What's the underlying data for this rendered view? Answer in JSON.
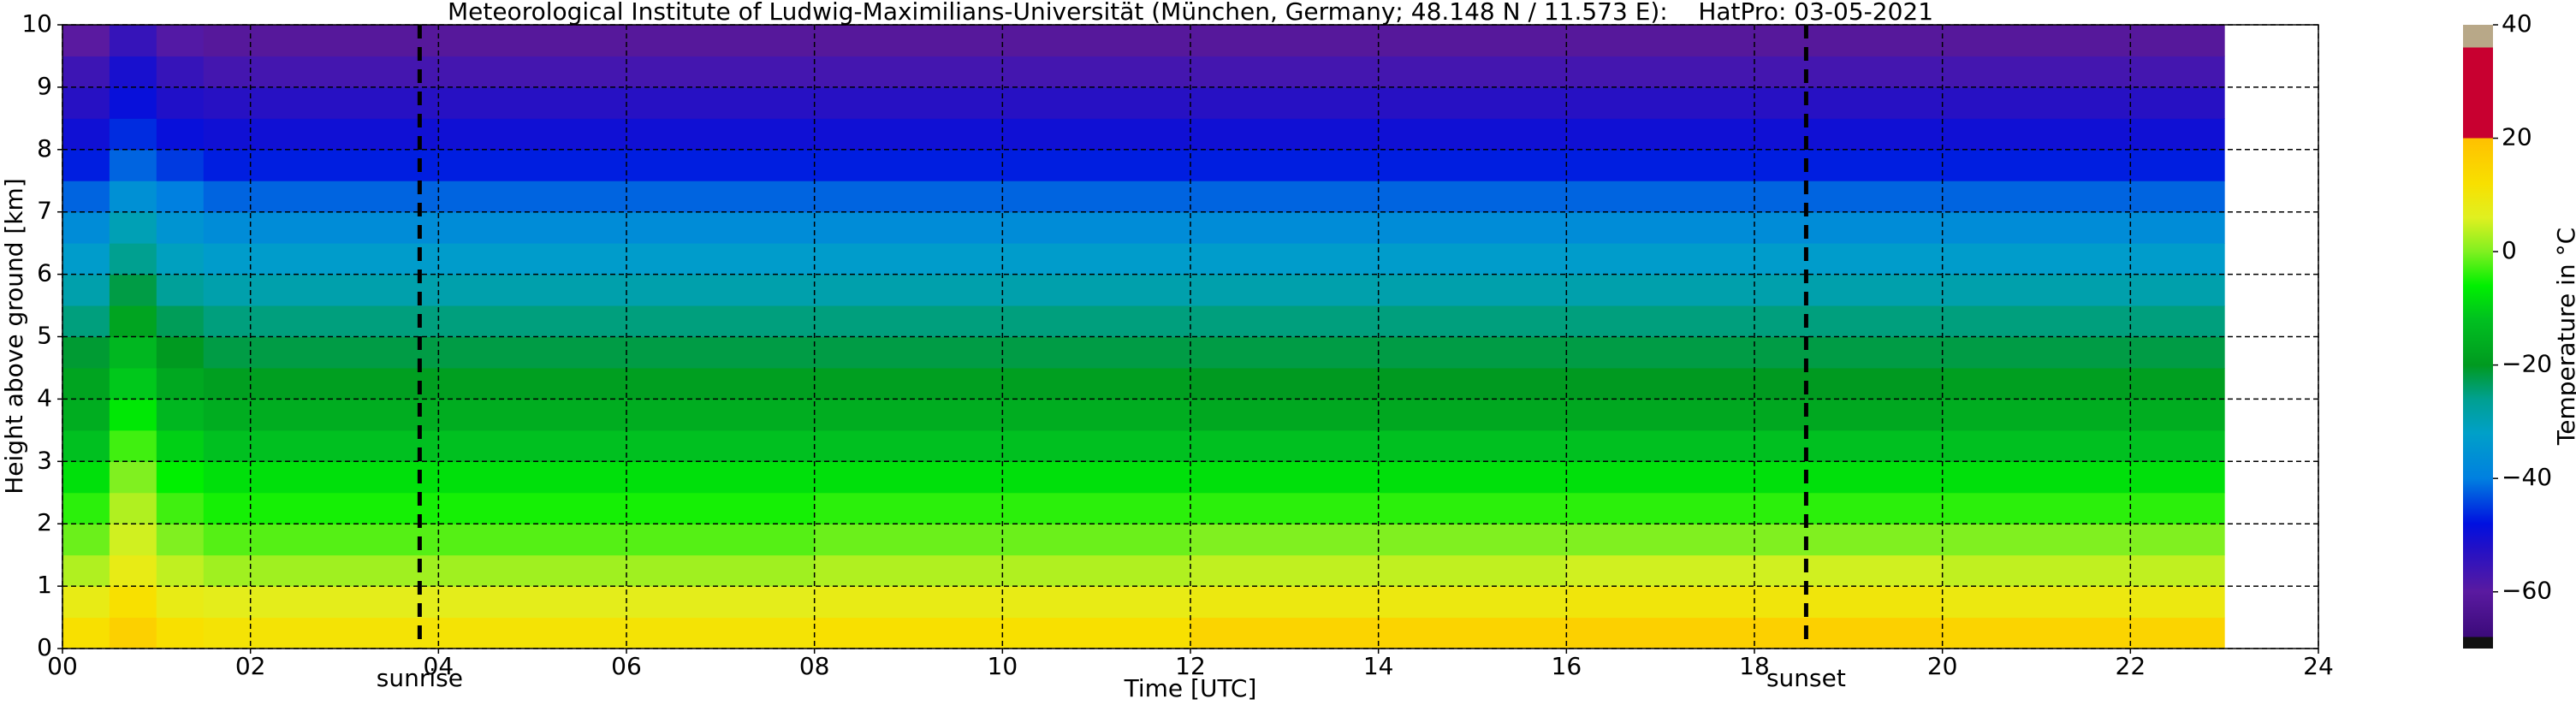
{
  "chart_data": {
    "type": "heatmap",
    "title": "Meteorological Institute of Ludwig-Maximilians-Universität (München, Germany; 48.148 N / 11.573 E):    HatPro: 03-05-2021",
    "xlabel": "Time [UTC]",
    "ylabel": "Height above ground [km]",
    "xlim": [
      0,
      24
    ],
    "xticks": [
      {
        "value": 0,
        "label": "00"
      },
      {
        "value": 2,
        "label": "02"
      },
      {
        "value": 4,
        "label": "04"
      },
      {
        "value": 6,
        "label": "06"
      },
      {
        "value": 8,
        "label": "08"
      },
      10,
      12,
      14,
      16,
      18,
      20,
      22,
      24
    ],
    "ylim": [
      0,
      10
    ],
    "yticks": [
      0,
      1,
      2,
      3,
      4,
      5,
      6,
      7,
      8,
      9,
      10
    ],
    "grid": true,
    "x_edges": [
      0,
      0.5,
      1,
      1.5,
      4,
      8,
      12,
      16,
      20,
      23
    ],
    "y_edges": [
      0,
      0.5,
      1,
      1.5,
      2,
      2.5,
      3,
      3.5,
      4,
      4.5,
      5,
      5.5,
      6,
      6.5,
      7,
      7.5,
      8,
      8.5,
      9,
      9.5,
      10
    ],
    "values": [
      [
        12,
        16,
        12,
        11,
        11,
        12,
        15,
        16,
        15
      ],
      [
        8,
        12,
        8,
        7,
        7,
        8,
        9,
        10,
        9
      ],
      [
        3,
        8,
        4,
        2,
        2,
        3,
        4,
        5,
        4
      ],
      [
        -1,
        5,
        0,
        -2,
        -2,
        -1,
        0,
        0,
        0
      ],
      [
        -4,
        3,
        -3,
        -5,
        -5,
        -4,
        -4,
        -4,
        -4
      ],
      [
        -8,
        0,
        -6,
        -8,
        -8,
        -8,
        -8,
        -8,
        -8
      ],
      [
        -12,
        -3,
        -10,
        -12,
        -12,
        -12,
        -12,
        -12,
        -12
      ],
      [
        -16,
        -7,
        -14,
        -16,
        -16,
        -16,
        -17,
        -17,
        -16
      ],
      [
        -18,
        -11,
        -17,
        -19,
        -19,
        -19,
        -20,
        -20,
        -19
      ],
      [
        -21,
        -14,
        -20,
        -22,
        -22,
        -22,
        -22,
        -22,
        -22
      ],
      [
        -25,
        -18,
        -23,
        -25,
        -25,
        -25,
        -25,
        -25,
        -25
      ],
      [
        -29,
        -22,
        -27,
        -29,
        -29,
        -29,
        -29,
        -29,
        -29
      ],
      [
        -33,
        -26,
        -31,
        -33,
        -33,
        -33,
        -33,
        -33,
        -33
      ],
      [
        -37,
        -30,
        -35,
        -37,
        -37,
        -37,
        -37,
        -37,
        -37
      ],
      [
        -42,
        -36,
        -40,
        -42,
        -42,
        -42,
        -42,
        -42,
        -42
      ],
      [
        -47,
        -42,
        -45,
        -47,
        -47,
        -47,
        -47,
        -47,
        -47
      ],
      [
        -50,
        -46,
        -49,
        -50,
        -50,
        -50,
        -50,
        -50,
        -50
      ],
      [
        -53,
        -49,
        -52,
        -53,
        -53,
        -53,
        -53,
        -53,
        -53
      ],
      [
        -56,
        -51,
        -55,
        -57,
        -57,
        -57,
        -57,
        -57,
        -57
      ],
      [
        -60,
        -55,
        -59,
        -61,
        -61,
        -61,
        -61,
        -61,
        -61
      ]
    ],
    "colorbar_label": "Temperature in °C",
    "clim": [
      -70,
      40
    ],
    "cticks": [
      {
        "value": -60,
        "label": "−60"
      },
      {
        "value": -40,
        "label": "−40"
      },
      {
        "value": -20,
        "label": "−20"
      },
      0,
      20,
      40
    ],
    "colorscale": [
      [
        -70,
        "#111111"
      ],
      [
        -68,
        "#111111"
      ],
      [
        -68,
        "#3b0a7a"
      ],
      [
        -60,
        "#5a1aa0"
      ],
      [
        -52,
        "#2010c8"
      ],
      [
        -48,
        "#0010e0"
      ],
      [
        -40,
        "#0080e0"
      ],
      [
        -32,
        "#00a0c8"
      ],
      [
        -26,
        "#00a090"
      ],
      [
        -20,
        "#009a20"
      ],
      [
        -12,
        "#00c020"
      ],
      [
        -6,
        "#00f000"
      ],
      [
        0,
        "#80f020"
      ],
      [
        6,
        "#e0f020"
      ],
      [
        12,
        "#f8e000"
      ],
      [
        20,
        "#ffc000"
      ],
      [
        20,
        "#c80030"
      ],
      [
        36,
        "#c80030"
      ],
      [
        36,
        "#b8a888"
      ],
      [
        40,
        "#b8a888"
      ]
    ],
    "annotations": [
      {
        "x": 3.8,
        "label": "sunrise"
      },
      {
        "x": 18.55,
        "label": "sunset"
      }
    ]
  }
}
